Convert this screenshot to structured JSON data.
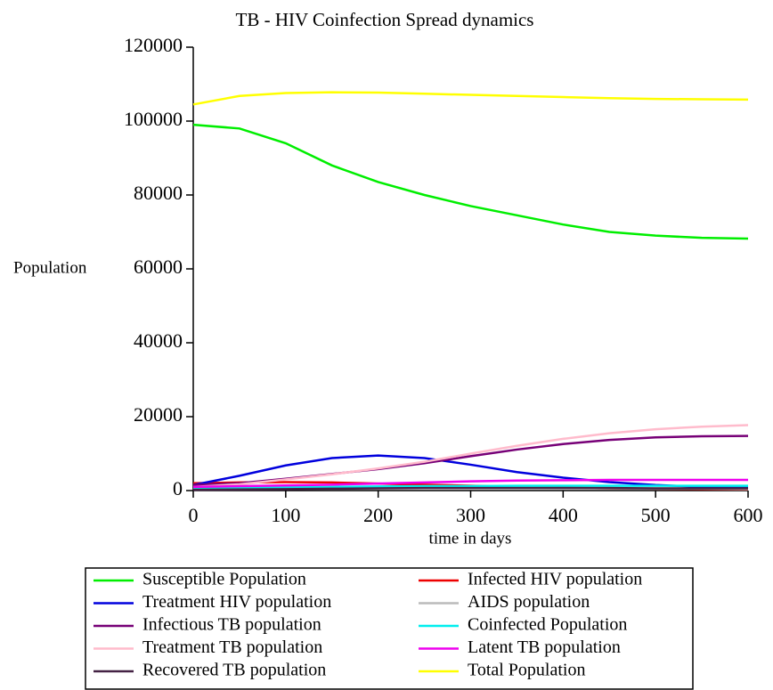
{
  "chart_data": {
    "type": "line",
    "title": "TB - HIV Coinfection Spread dynamics",
    "x_label": "time in days",
    "y_label": "Population",
    "x": [
      0,
      50,
      100,
      150,
      200,
      250,
      300,
      350,
      400,
      450,
      500,
      550,
      600
    ],
    "xlim": [
      0,
      600
    ],
    "xticks": [
      0,
      100,
      200,
      300,
      400,
      500,
      600
    ],
    "ylim": [
      0,
      120000
    ],
    "yticks": [
      0,
      20000,
      40000,
      60000,
      80000,
      100000,
      120000
    ],
    "series": [
      {
        "name": "Susceptible Population",
        "color": "#00ee00",
        "values": [
          99000,
          98000,
          94000,
          88000,
          83500,
          80000,
          77000,
          74500,
          72000,
          70000,
          69000,
          68400,
          68200
        ]
      },
      {
        "name": "Infected HIV population",
        "color": "#ee0000",
        "values": [
          2000,
          2200,
          2300,
          2200,
          1900,
          1600,
          1300,
          1000,
          800,
          600,
          500,
          400,
          300
        ]
      },
      {
        "name": "Treatment HIV population",
        "color": "#0000dd",
        "values": [
          1500,
          4000,
          6800,
          8800,
          9500,
          8800,
          7000,
          5000,
          3500,
          2300,
          1500,
          1000,
          800
        ]
      },
      {
        "name": "AIDS population",
        "color": "#bbbbbb",
        "values": [
          300,
          500,
          700,
          800,
          900,
          900,
          900,
          800,
          700,
          600,
          500,
          500,
          400
        ]
      },
      {
        "name": "Infectious TB population",
        "color": "#770077",
        "values": [
          1500,
          2000,
          3200,
          4500,
          5800,
          7400,
          9300,
          11100,
          12600,
          13700,
          14400,
          14700,
          14800
        ]
      },
      {
        "name": "Coinfected Population",
        "color": "#00eeee",
        "values": [
          500,
          700,
          900,
          1000,
          1100,
          1200,
          1200,
          1300,
          1300,
          1300,
          1300,
          1300,
          1300
        ]
      },
      {
        "name": "Treatment TB population",
        "color": "#ffbbcc",
        "values": [
          1000,
          1700,
          3000,
          4400,
          6000,
          7800,
          10000,
          12100,
          14000,
          15500,
          16600,
          17300,
          17700
        ]
      },
      {
        "name": "Latent TB population",
        "color": "#ee00ee",
        "values": [
          1000,
          1200,
          1400,
          1600,
          1900,
          2200,
          2500,
          2700,
          2800,
          2900,
          2900,
          2900,
          2900
        ]
      },
      {
        "name": "Recovered TB population",
        "color": "#442244",
        "values": [
          200,
          300,
          400,
          500,
          600,
          700,
          700,
          700,
          700,
          700,
          600,
          600,
          600
        ]
      },
      {
        "name": "Total Population",
        "color": "#ffff00",
        "values": [
          104500,
          106800,
          107600,
          107800,
          107700,
          107400,
          107100,
          106800,
          106500,
          106200,
          106000,
          105900,
          105800
        ]
      }
    ]
  }
}
